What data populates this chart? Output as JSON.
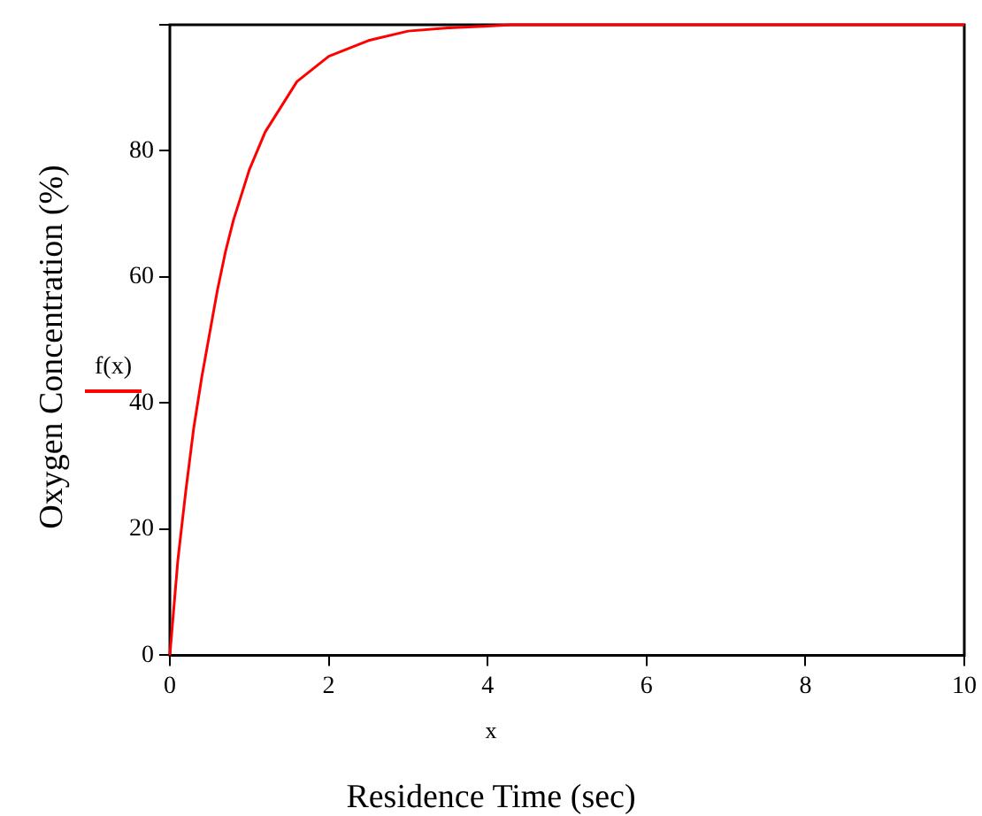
{
  "chart_data": {
    "type": "line",
    "xlabel": "x",
    "ylabel": "Oxygen Concentration (%)",
    "annotations": [
      "Residence Time (sec)"
    ],
    "x": [
      0,
      0.1,
      0.2,
      0.3,
      0.4,
      0.5,
      0.6,
      0.7,
      0.8,
      0.9,
      1.0,
      1.2,
      1.4,
      1.6,
      1.8,
      2.0,
      2.5,
      3.0,
      3.5,
      4.0,
      4.3,
      10
    ],
    "series": [
      {
        "name": "f(x)",
        "color": "#ff0000",
        "values": [
          0,
          15,
          26,
          36,
          44,
          51,
          58,
          64,
          69,
          73,
          77,
          83,
          87,
          91,
          93,
          95,
          97.5,
          99,
          99.5,
          99.8,
          100,
          100
        ]
      }
    ],
    "xlim": [
      0,
      10
    ],
    "xticks": [
      0,
      2,
      4,
      6,
      8,
      10
    ],
    "ylim": [
      0,
      100
    ],
    "yticks": [
      0,
      20,
      40,
      60,
      80,
      {
        "value": 100,
        "label": null
      }
    ],
    "grid": false,
    "legend": "left",
    "marker": "none",
    "line_style": "solid"
  }
}
